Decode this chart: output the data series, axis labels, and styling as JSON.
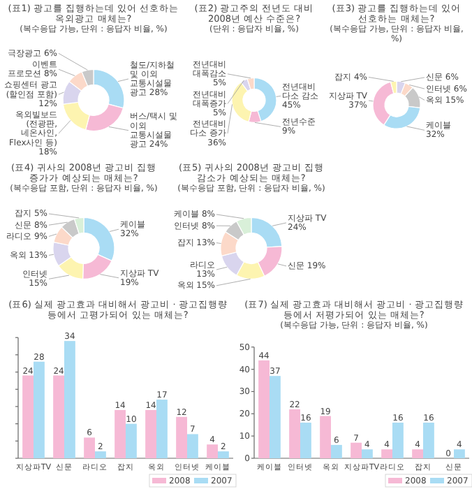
{
  "chart_data": [
    {
      "type": "donut",
      "title": "(표1) 광고를 집행하는데 있어 선호하는 옥외광고 매체는?",
      "subtitle": "(복수응답 가능, 단위 : 응답자 비율, %)",
      "categories": [
        "철도/지하철 및 이외 교통시설물 광고",
        "버스/택시 및 이외 교통시설물 광고",
        "옥외빌보드 (전광판, 네온사인, Flex사인 등)",
        "쇼핑센터 광고 (할인점 포함)",
        "이벤트 프로모션",
        "극장광고"
      ],
      "values": [
        28,
        24,
        18,
        12,
        8,
        6
      ],
      "value_labels": [
        "28%",
        "24%",
        "18%",
        "12%",
        "8%",
        "6%"
      ],
      "colors": [
        "#a9dcf4",
        "#f6b9d5",
        "#fdf4b0",
        "#d9d5ee",
        "#fcd9c9",
        "#c9c9c9"
      ]
    },
    {
      "type": "donut",
      "title": "(표2) 광고주의 전년도 대비 2008년 예산 수준은?",
      "subtitle": "(단위 : 응답자 비율, %)",
      "categories": [
        "전년대비 다소 감소",
        "전년수준",
        "전년대비 다소 증가",
        "전년대비 대폭증가",
        "전년대비 대폭감소"
      ],
      "values": [
        45,
        9,
        36,
        5,
        5
      ],
      "value_labels": [
        "45%",
        "9%",
        "36%",
        "5%",
        "5%"
      ],
      "colors": [
        "#a9dcf4",
        "#f6b9d5",
        "#fdf4b0",
        "#d9d5ee",
        "#fcd9c9"
      ]
    },
    {
      "type": "donut",
      "title": "(표3) 광고를 집행하는데 있어 선호하는 매체는?",
      "subtitle": "(복수응답 가능, 단위 : 응답자 비율, %)",
      "categories": [
        "신문",
        "인터넷",
        "옥외",
        "케이블",
        "지상파 TV",
        "잡지"
      ],
      "values": [
        6,
        6,
        15,
        32,
        37,
        4
      ],
      "value_labels": [
        "6%",
        "6%",
        "15%",
        "32%",
        "37%",
        "4%"
      ],
      "colors": [
        "#d9d5ee",
        "#fcd9c9",
        "#c9c9c9",
        "#a9dcf4",
        "#f6b9d5",
        "#fdf4b0"
      ]
    },
    {
      "type": "donut",
      "title": "(표4) 귀사의 2008년 광고비 집행 증가가 예상되는 매체는?",
      "subtitle": "(복수응답 포함, 단위 : 응답자 비율, %)",
      "categories": [
        "케이블",
        "지상파 TV",
        "인터넷",
        "옥외",
        "라디오",
        "신문",
        "잡지"
      ],
      "values": [
        32,
        19,
        15,
        13,
        9,
        8,
        5
      ],
      "value_labels": [
        "32%",
        "19%",
        "15%",
        "13%",
        "9%",
        "8%",
        "5%"
      ],
      "colors": [
        "#a9dcf4",
        "#f6b9d5",
        "#fdf4b0",
        "#d9d5ee",
        "#fcd9c9",
        "#c9c9c9",
        "#d9f0d9"
      ]
    },
    {
      "type": "donut",
      "title": "(표5) 귀사의 2008년 광고비 집행 감소가 예상되는 매체는?",
      "subtitle": "(복수응답 포함, 단위 : 응답자 비율, %)",
      "categories": [
        "지상파 TV",
        "신문",
        "옥외",
        "라디오",
        "잡지",
        "인터넷",
        "케이블"
      ],
      "values": [
        24,
        19,
        15,
        13,
        13,
        8,
        8
      ],
      "value_labels": [
        "24%",
        "19%",
        "15%",
        "13%",
        "13%",
        "8%",
        "8%"
      ],
      "colors": [
        "#a9dcf4",
        "#f6b9d5",
        "#fdf4b0",
        "#d9d5ee",
        "#fcd9c9",
        "#c9c9c9",
        "#d9f0d9"
      ]
    },
    {
      "type": "bar",
      "title": "(표6) 실제 광고효과 대비해서 광고비 · 광고집행량 등에서 고평가되어 있는 매체는?",
      "categories": [
        "지상파TV",
        "신문",
        "라디오",
        "잡지",
        "옥외",
        "인터넷",
        "케이블"
      ],
      "series": [
        {
          "name": "2008",
          "color": "#f6b9d5",
          "values": [
            24,
            24,
            6,
            14,
            14,
            12,
            4
          ]
        },
        {
          "name": "2007",
          "color": "#a9dcf4",
          "values": [
            28,
            34,
            2,
            10,
            17,
            7,
            2
          ]
        }
      ],
      "ylim": [
        0,
        35
      ],
      "yticks": [
        {
          "value": 0,
          "label": null
        },
        {
          "value": 5,
          "label": null
        },
        {
          "value": 10,
          "label": null
        },
        {
          "value": 15,
          "label": null
        },
        {
          "value": 20,
          "label": null
        },
        {
          "value": 25,
          "label": null
        },
        {
          "value": 30,
          "label": null
        },
        {
          "value": 35,
          "label": null
        }
      ],
      "tick_labels": "x",
      "data_labels": true,
      "legend": "bottom right",
      "grid": false
    },
    {
      "type": "bar",
      "title": "(표7) 실제 광고효과 대비해서 광고비 · 광고집행량 등에서 저평가되어 있는 매체는?",
      "subtitle": "(복수응답 가능, 단위 : 응답자 비율, %)",
      "categories": [
        "케이블",
        "인터넷",
        "옥외",
        "지상파TV",
        "라디오",
        "잡지",
        "신문"
      ],
      "series": [
        {
          "name": "2008",
          "color": "#f6b9d5",
          "values": [
            44,
            22,
            19,
            7,
            4,
            4,
            0
          ]
        },
        {
          "name": "2007",
          "color": "#a9dcf4",
          "values": [
            37,
            16,
            6,
            4,
            16,
            16,
            4
          ]
        }
      ],
      "ylim": [
        0,
        50
      ],
      "yticks": [
        0,
        10,
        20,
        30,
        40,
        50
      ],
      "data_labels": true,
      "legend": "bottom right",
      "grid": false
    }
  ]
}
